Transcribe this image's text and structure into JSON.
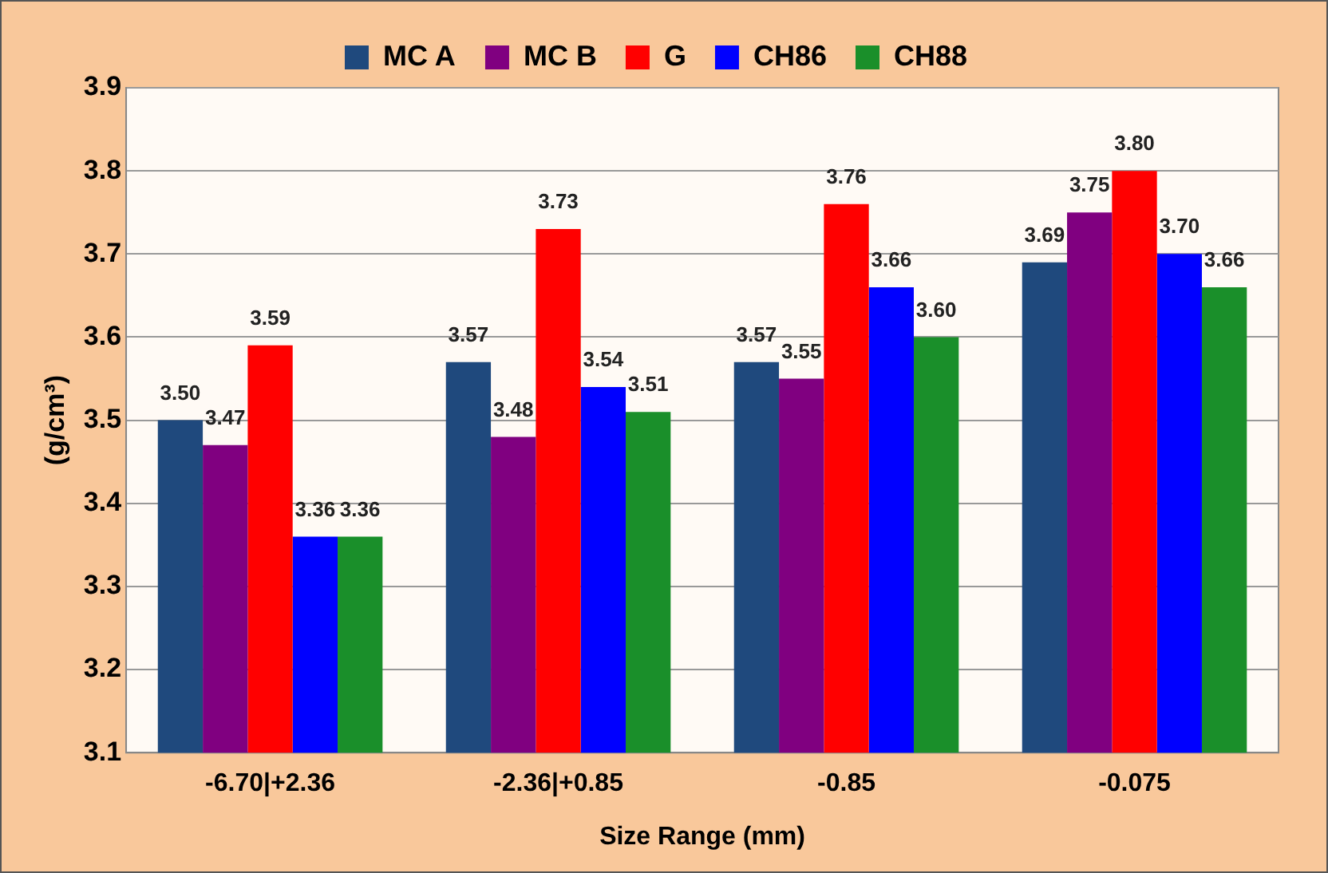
{
  "chart_data": {
    "type": "bar",
    "xlabel": "Size Range (mm)",
    "ylabel": "(g/cm³)",
    "categories": [
      "-6.70|+2.36",
      "-2.36|+0.85",
      "-0.85",
      "-0.075"
    ],
    "series": [
      {
        "name": "MC A",
        "color": "#1f497d",
        "values": [
          3.5,
          3.57,
          3.57,
          3.69
        ],
        "value_labels": [
          "3.50",
          "3.57",
          "3.57",
          "3.69"
        ]
      },
      {
        "name": "MC B",
        "color": "#800080",
        "values": [
          3.47,
          3.48,
          3.55,
          3.75
        ],
        "value_labels": [
          "3.47",
          "3.48",
          "3.55",
          "3.75"
        ]
      },
      {
        "name": "G",
        "color": "#ff0000",
        "values": [
          3.59,
          3.73,
          3.76,
          3.8
        ],
        "value_labels": [
          "3.59",
          "3.73",
          "3.76",
          "3.80"
        ]
      },
      {
        "name": "CH86",
        "color": "#0000ff",
        "values": [
          3.36,
          3.54,
          3.66,
          3.7
        ],
        "value_labels": [
          "3.36",
          "3.54",
          "3.66",
          "3.70"
        ]
      },
      {
        "name": "CH88",
        "color": "#1a8f2a",
        "values": [
          3.36,
          3.51,
          3.6,
          3.66
        ],
        "value_labels": [
          "3.36",
          "3.51",
          "3.60",
          "3.66"
        ]
      }
    ],
    "ylim": [
      3.1,
      3.9
    ],
    "yticks": [
      3.1,
      3.2,
      3.3,
      3.4,
      3.5,
      3.6,
      3.7,
      3.8,
      3.9
    ],
    "grid": "y",
    "legend": "top"
  }
}
